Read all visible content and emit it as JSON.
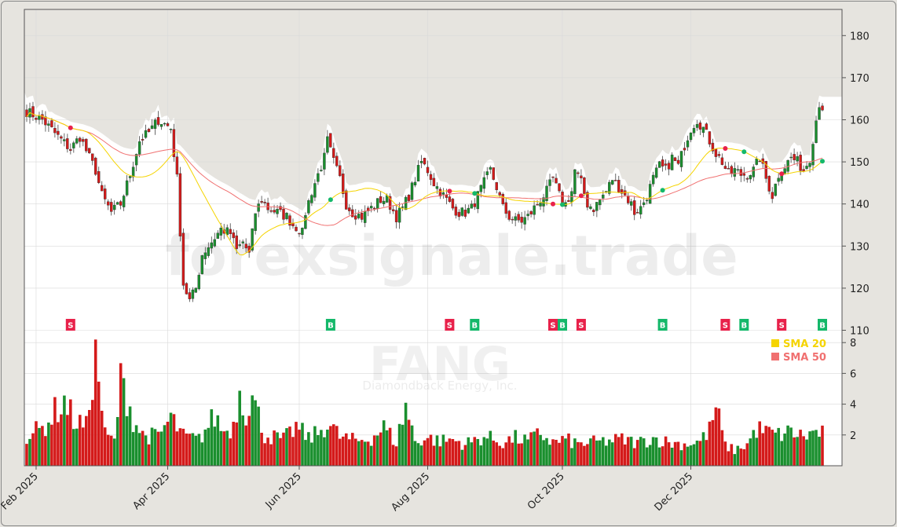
{
  "chart_data": {
    "type": "candlestick",
    "watermark": "forexsignale.trade",
    "symbol": "FANG",
    "company": "Diamondback Energy, Inc.",
    "y_ticks": [
      110,
      120,
      130,
      140,
      150,
      160,
      170,
      180
    ],
    "vol_ticks": [
      2,
      4,
      6,
      8
    ],
    "x_ticks": [
      "Feb 2025",
      "Apr 2025",
      "Jun 2025",
      "Aug 2025",
      "Oct 2025",
      "Dec 2025"
    ],
    "legend": [
      {
        "name": "SMA 20",
        "color": "#f5d400"
      },
      {
        "name": "SMA 50",
        "color": "#f07070"
      }
    ],
    "colors": {
      "up": "#1a8f2e",
      "down": "#d41a1a",
      "sma20": "#f5d400",
      "sma50": "#f07070",
      "buy": "#14b86a",
      "sell": "#e8214a"
    },
    "close_waypoints": [
      [
        0,
        162
      ],
      [
        5,
        160
      ],
      [
        10,
        156
      ],
      [
        14,
        153
      ],
      [
        17,
        156
      ],
      [
        20,
        151
      ],
      [
        22,
        148
      ],
      [
        24,
        142
      ],
      [
        27,
        138
      ],
      [
        30,
        140
      ],
      [
        33,
        147
      ],
      [
        36,
        155
      ],
      [
        39,
        157
      ],
      [
        42,
        160
      ],
      [
        44,
        159
      ],
      [
        46,
        158
      ],
      [
        48,
        146
      ],
      [
        50,
        121
      ],
      [
        52,
        117
      ],
      [
        54,
        120
      ],
      [
        56,
        128
      ],
      [
        59,
        131
      ],
      [
        62,
        134
      ],
      [
        65,
        133
      ],
      [
        67,
        129
      ],
      [
        69,
        131
      ],
      [
        71,
        128
      ],
      [
        73,
        138
      ],
      [
        75,
        141
      ],
      [
        77,
        139
      ],
      [
        80,
        138
      ],
      [
        83,
        137
      ],
      [
        85,
        135
      ],
      [
        87,
        134
      ],
      [
        88,
        133
      ],
      [
        89,
        138
      ],
      [
        91,
        143
      ],
      [
        93,
        147
      ],
      [
        95,
        151
      ],
      [
        96,
        155
      ],
      [
        98,
        150
      ],
      [
        100,
        146
      ],
      [
        102,
        140
      ],
      [
        104,
        138
      ],
      [
        107,
        137
      ],
      [
        110,
        139
      ],
      [
        113,
        141
      ],
      [
        115,
        141
      ],
      [
        118,
        137
      ],
      [
        120,
        139
      ],
      [
        122,
        142
      ],
      [
        124,
        146
      ],
      [
        126,
        150
      ],
      [
        128,
        148
      ],
      [
        130,
        145
      ],
      [
        132,
        143
      ],
      [
        134,
        141
      ],
      [
        136,
        139
      ],
      [
        138,
        138
      ],
      [
        140,
        138
      ],
      [
        142,
        139
      ],
      [
        144,
        142
      ],
      [
        146,
        145
      ],
      [
        148,
        148
      ],
      [
        150,
        144
      ],
      [
        152,
        139
      ],
      [
        154,
        137
      ],
      [
        156,
        136
      ],
      [
        158,
        136
      ],
      [
        160,
        137
      ],
      [
        162,
        139
      ],
      [
        164,
        141
      ],
      [
        166,
        143
      ],
      [
        168,
        146
      ],
      [
        170,
        142
      ],
      [
        172,
        140
      ],
      [
        174,
        143
      ],
      [
        175,
        148
      ],
      [
        177,
        145
      ],
      [
        179,
        140
      ],
      [
        181,
        139
      ],
      [
        183,
        141
      ],
      [
        185,
        143
      ],
      [
        187,
        146
      ],
      [
        189,
        144
      ],
      [
        191,
        142
      ],
      [
        193,
        140
      ],
      [
        194,
        138
      ],
      [
        196,
        139
      ],
      [
        198,
        142
      ],
      [
        200,
        146
      ],
      [
        202,
        149
      ],
      [
        204,
        148
      ],
      [
        206,
        151
      ],
      [
        208,
        149
      ],
      [
        210,
        154
      ],
      [
        212,
        158
      ],
      [
        214,
        160
      ],
      [
        216,
        158
      ],
      [
        218,
        155
      ],
      [
        220,
        152
      ],
      [
        222,
        150
      ],
      [
        224,
        147
      ],
      [
        226,
        148
      ],
      [
        228,
        147
      ],
      [
        230,
        147
      ],
      [
        232,
        148
      ],
      [
        234,
        151
      ],
      [
        236,
        146
      ],
      [
        238,
        142
      ],
      [
        240,
        147
      ],
      [
        242,
        149
      ],
      [
        244,
        151
      ],
      [
        246,
        150
      ],
      [
        248,
        148
      ],
      [
        250,
        151
      ],
      [
        252,
        160
      ],
      [
        253,
        164
      ],
      [
        254,
        163
      ]
    ],
    "volume_waypoints": [
      [
        0,
        2.0
      ],
      [
        5,
        2.4
      ],
      [
        9,
        3.5
      ],
      [
        12,
        4.2
      ],
      [
        15,
        3.0
      ],
      [
        19,
        2.5
      ],
      [
        22,
        7.6
      ],
      [
        25,
        2.0
      ],
      [
        28,
        1.6
      ],
      [
        30,
        5.4
      ],
      [
        32,
        4.6
      ],
      [
        34,
        3.0
      ],
      [
        37,
        2.0
      ],
      [
        42,
        1.9
      ],
      [
        46,
        3.1
      ],
      [
        50,
        1.9
      ],
      [
        55,
        1.7
      ],
      [
        60,
        3.2
      ],
      [
        63,
        2.2
      ],
      [
        66,
        2.6
      ],
      [
        68,
        5.0
      ],
      [
        70,
        3.6
      ],
      [
        72,
        4.4
      ],
      [
        76,
        2.0
      ],
      [
        82,
        1.7
      ],
      [
        86,
        2.5
      ],
      [
        90,
        1.8
      ],
      [
        93,
        2.1
      ],
      [
        96,
        2.8
      ],
      [
        100,
        1.9
      ],
      [
        105,
        1.6
      ],
      [
        110,
        1.8
      ],
      [
        114,
        2.5
      ],
      [
        118,
        1.5
      ],
      [
        121,
        3.9
      ],
      [
        124,
        1.6
      ],
      [
        128,
        1.8
      ],
      [
        132,
        1.6
      ],
      [
        136,
        1.7
      ],
      [
        140,
        1.4
      ],
      [
        146,
        1.9
      ],
      [
        152,
        1.5
      ],
      [
        156,
        1.8
      ],
      [
        160,
        1.6
      ],
      [
        164,
        2.1
      ],
      [
        168,
        1.5
      ],
      [
        172,
        1.7
      ],
      [
        176,
        1.4
      ],
      [
        180,
        1.5
      ],
      [
        185,
        1.6
      ],
      [
        190,
        1.7
      ],
      [
        195,
        1.5
      ],
      [
        200,
        1.8
      ],
      [
        205,
        1.5
      ],
      [
        210,
        1.4
      ],
      [
        215,
        1.6
      ],
      [
        218,
        2.3
      ],
      [
        220,
        3.8
      ],
      [
        223,
        1.3
      ],
      [
        226,
        1.0
      ],
      [
        230,
        1.4
      ],
      [
        233,
        2.4
      ],
      [
        236,
        2.2
      ],
      [
        240,
        2.0
      ],
      [
        244,
        2.2
      ],
      [
        248,
        1.9
      ],
      [
        252,
        2.2
      ],
      [
        254,
        2.1
      ]
    ],
    "signals": [
      {
        "type": "S",
        "day": 14
      },
      {
        "type": "B",
        "day": 97
      },
      {
        "type": "S",
        "day": 135
      },
      {
        "type": "B",
        "day": 143
      },
      {
        "type": "S",
        "day": 168
      },
      {
        "type": "B",
        "day": 171
      },
      {
        "type": "S",
        "day": 177
      },
      {
        "type": "B",
        "day": 203
      },
      {
        "type": "S",
        "day": 223
      },
      {
        "type": "B",
        "day": 229
      },
      {
        "type": "S",
        "day": 241
      },
      {
        "type": "B",
        "day": 254
      }
    ]
  }
}
